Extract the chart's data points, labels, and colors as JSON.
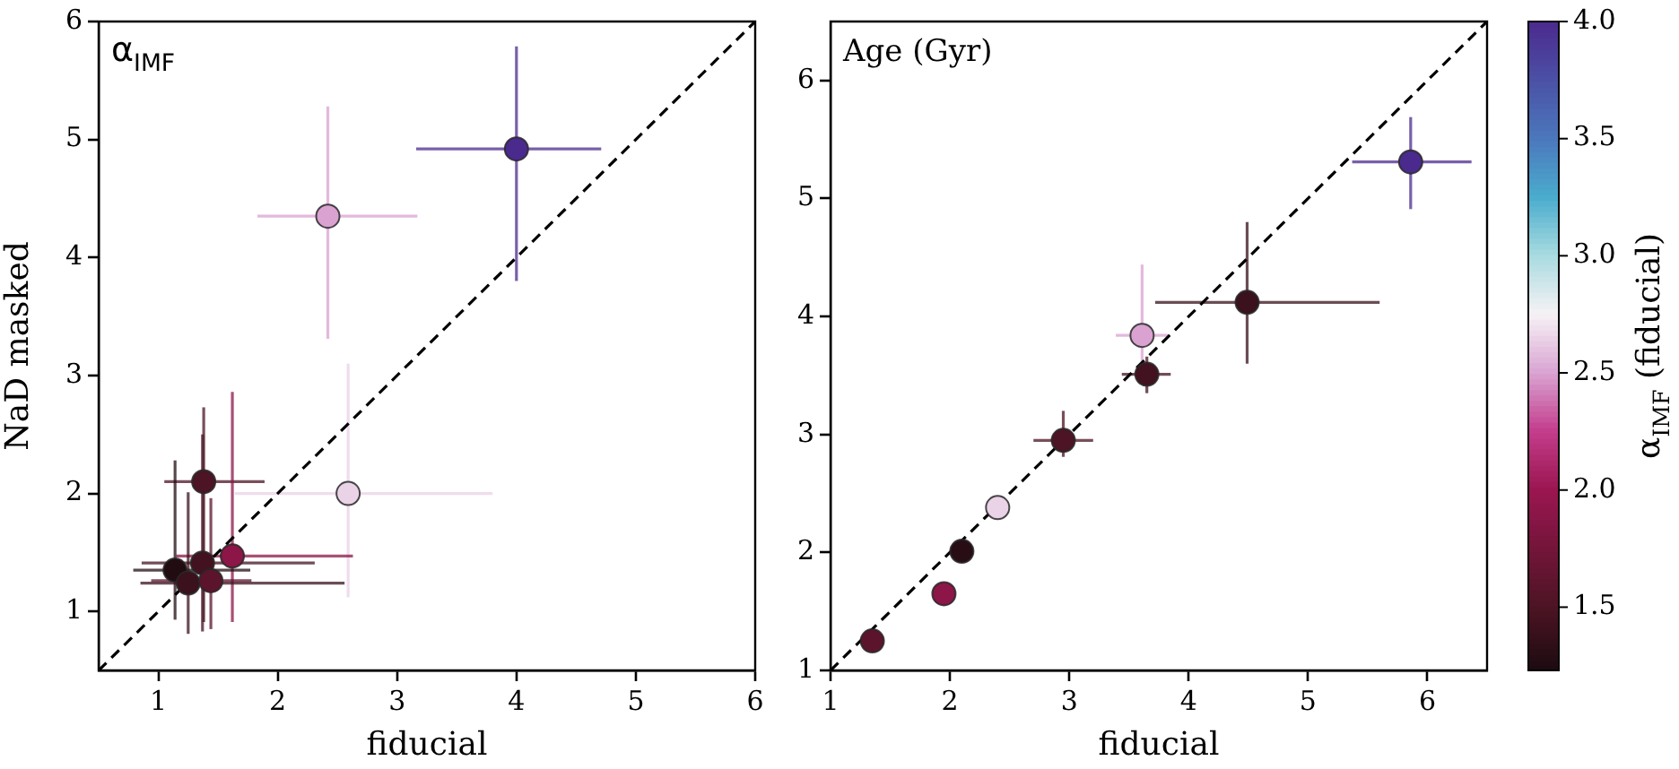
{
  "chart_data": [
    {
      "type": "scatter",
      "xlabel": "fiducial",
      "ylabel": "NaD masked",
      "annotations": [
        "α$_{IMF}$"
      ],
      "xlim": [
        0.5,
        6
      ],
      "ylim": [
        0.5,
        6
      ],
      "xticks": [
        1,
        2,
        3,
        4,
        5,
        6
      ],
      "yticks": [
        1,
        2,
        3,
        4,
        5,
        6
      ],
      "marker": "circle",
      "series": [
        {
          "x": [
            4.0,
            2.42,
            2.59,
            1.38,
            1.62,
            1.14,
            1.25,
            1.37,
            1.44
          ],
          "values": [
            4.92,
            4.35,
            2.0,
            2.1,
            1.47,
            1.35,
            1.24,
            1.41,
            1.26
          ],
          "xerrors": [
            [
              3.16,
              4.71
            ],
            [
              1.83,
              3.17
            ],
            [
              1.64,
              3.8
            ],
            [
              1.05,
              1.89
            ],
            [
              1.15,
              2.63
            ],
            [
              0.79,
              1.77
            ],
            [
              0.85,
              2.56
            ],
            [
              0.86,
              2.31
            ],
            [
              0.94,
              1.78
            ]
          ],
          "errors": [
            [
              3.8,
              5.79
            ],
            [
              3.31,
              5.28
            ],
            [
              1.12,
              3.1
            ],
            [
              0.91,
              2.73
            ],
            [
              0.91,
              2.86
            ],
            [
              0.93,
              2.28
            ],
            [
              0.81,
              2.01
            ],
            [
              0.83,
              2.5
            ],
            [
              0.85,
              1.96
            ]
          ],
          "colors": [
            "#4b2a8e",
            "#d9a2d1",
            "#ead2e7",
            "#4c1424",
            "#8b1647",
            "#200c11",
            "#3a111c",
            "#431220",
            "#5c142c"
          ]
        },
        {
          "type": "line",
          "x": [
            0.5,
            6
          ],
          "values": [
            0.5,
            6
          ],
          "color": "#000000",
          "line_style": "dashed",
          "marker": "none"
        }
      ]
    },
    {
      "type": "scatter",
      "xlabel": "fiducial",
      "annotations": [
        "Age (Gyr)"
      ],
      "xlim": [
        1,
        6.5
      ],
      "ylim": [
        1,
        6.5
      ],
      "xticks": [
        1,
        2,
        3,
        4,
        5,
        6
      ],
      "yticks": [
        1,
        2,
        3,
        4,
        5,
        6
      ],
      "marker": "circle",
      "clabel": "α$_{IMF}$ (fiducial)",
      "clim": [
        1.23,
        4.0
      ],
      "cticks": [
        {
          "value": 1.5,
          "label": "1.5"
        },
        {
          "value": 2,
          "label": "2.0"
        },
        {
          "value": 2.5,
          "label": "2.5"
        },
        {
          "value": 3,
          "label": "3.0"
        },
        {
          "value": 3.5,
          "label": "3.5"
        },
        {
          "value": 4,
          "label": "4.0"
        }
      ],
      "series": [
        {
          "x": [
            5.86,
            3.61,
            2.4,
            4.49,
            1.95,
            2.1,
            1.35,
            3.65,
            2.95
          ],
          "values": [
            5.31,
            3.84,
            2.38,
            4.12,
            1.65,
            2.01,
            1.25,
            3.51,
            2.95
          ],
          "xerrors": [
            [
              5.37,
              6.37
            ],
            [
              3.39,
              3.83
            ],
            [
              2.35,
              2.45
            ],
            [
              3.72,
              5.6
            ],
            [
              1.9,
              2.0
            ],
            [
              2.05,
              2.15
            ],
            [
              1.3,
              1.4
            ],
            [
              3.44,
              3.85
            ],
            [
              2.7,
              3.2
            ]
          ],
          "errors": [
            [
              4.91,
              5.69
            ],
            [
              3.6,
              4.44
            ],
            [
              2.33,
              2.43
            ],
            [
              3.6,
              4.8
            ],
            [
              1.6,
              1.7
            ],
            [
              1.96,
              2.06
            ],
            [
              1.2,
              1.3
            ],
            [
              3.35,
              3.66
            ],
            [
              2.81,
              3.2
            ]
          ],
          "cvalues": [
            4.0,
            2.5,
            2.65,
            1.4,
            1.9,
            1.3,
            1.6,
            1.45,
            1.5
          ],
          "colors": [
            "#4b2a8e",
            "#d9a2d1",
            "#ead2e7",
            "#3a111c",
            "#8b1647",
            "#280d15",
            "#5c142c",
            "#431220",
            "#4c1424"
          ]
        },
        {
          "type": "line",
          "x": [
            1,
            6.5
          ],
          "values": [
            1,
            6.5
          ],
          "color": "#000000",
          "line_style": "dashed",
          "marker": "none"
        }
      ]
    }
  ]
}
